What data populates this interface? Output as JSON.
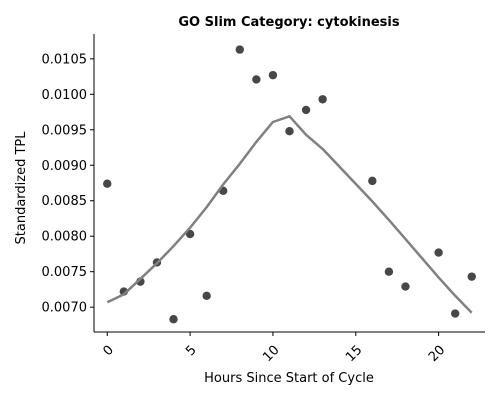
{
  "chart_data": {
    "type": "scatter",
    "title": "GO Slim Category: cytokinesis",
    "xlabel": "Hours Since Start of Cycle",
    "ylabel": "Standardized TPL",
    "xlim": [
      -0.8,
      22.8
    ],
    "ylim": [
      0.00665,
      0.01085
    ],
    "xticks": [
      0,
      5,
      10,
      15,
      20
    ],
    "xtick_labels": [
      "0",
      "5",
      "10",
      "15",
      "20"
    ],
    "yticks": [
      0.007,
      0.0075,
      0.008,
      0.0085,
      0.009,
      0.0095,
      0.01,
      0.0105
    ],
    "ytick_labels": [
      "0.0070",
      "0.0075",
      "0.0080",
      "0.0085",
      "0.0090",
      "0.0095",
      "0.0100",
      "0.0105"
    ],
    "grid": false,
    "series": [
      {
        "kind": "scatter",
        "color": "#333333",
        "points": [
          {
            "x": 0,
            "y": 0.00874
          },
          {
            "x": 1,
            "y": 0.00722
          },
          {
            "x": 2,
            "y": 0.00736
          },
          {
            "x": 3,
            "y": 0.00763
          },
          {
            "x": 4,
            "y": 0.00683
          },
          {
            "x": 5,
            "y": 0.00803
          },
          {
            "x": 6,
            "y": 0.00716
          },
          {
            "x": 7,
            "y": 0.00864
          },
          {
            "x": 8,
            "y": 0.01063
          },
          {
            "x": 9,
            "y": 0.01021
          },
          {
            "x": 10,
            "y": 0.01027
          },
          {
            "x": 11,
            "y": 0.00948
          },
          {
            "x": 12,
            "y": 0.00978
          },
          {
            "x": 13,
            "y": 0.00993
          },
          {
            "x": 16,
            "y": 0.00878
          },
          {
            "x": 17,
            "y": 0.0075
          },
          {
            "x": 18,
            "y": 0.00729
          },
          {
            "x": 20,
            "y": 0.00777
          },
          {
            "x": 21,
            "y": 0.00691
          },
          {
            "x": 22,
            "y": 0.00743
          }
        ]
      },
      {
        "kind": "line",
        "color": "#808080",
        "points": [
          {
            "x": 0,
            "y": 0.00707
          },
          {
            "x": 1,
            "y": 0.00718
          },
          {
            "x": 2,
            "y": 0.0074
          },
          {
            "x": 3,
            "y": 0.00762
          },
          {
            "x": 4,
            "y": 0.00786
          },
          {
            "x": 5,
            "y": 0.00812
          },
          {
            "x": 6,
            "y": 0.00841
          },
          {
            "x": 7,
            "y": 0.00873
          },
          {
            "x": 8,
            "y": 0.00902
          },
          {
            "x": 9,
            "y": 0.00933
          },
          {
            "x": 10,
            "y": 0.00961
          },
          {
            "x": 11,
            "y": 0.00969
          },
          {
            "x": 12,
            "y": 0.00943
          },
          {
            "x": 13,
            "y": 0.00923
          },
          {
            "x": 16,
            "y": 0.00849
          },
          {
            "x": 17,
            "y": 0.00823
          },
          {
            "x": 18,
            "y": 0.00796
          },
          {
            "x": 20,
            "y": 0.00742
          },
          {
            "x": 21,
            "y": 0.00716
          },
          {
            "x": 22,
            "y": 0.00692
          }
        ]
      }
    ]
  }
}
